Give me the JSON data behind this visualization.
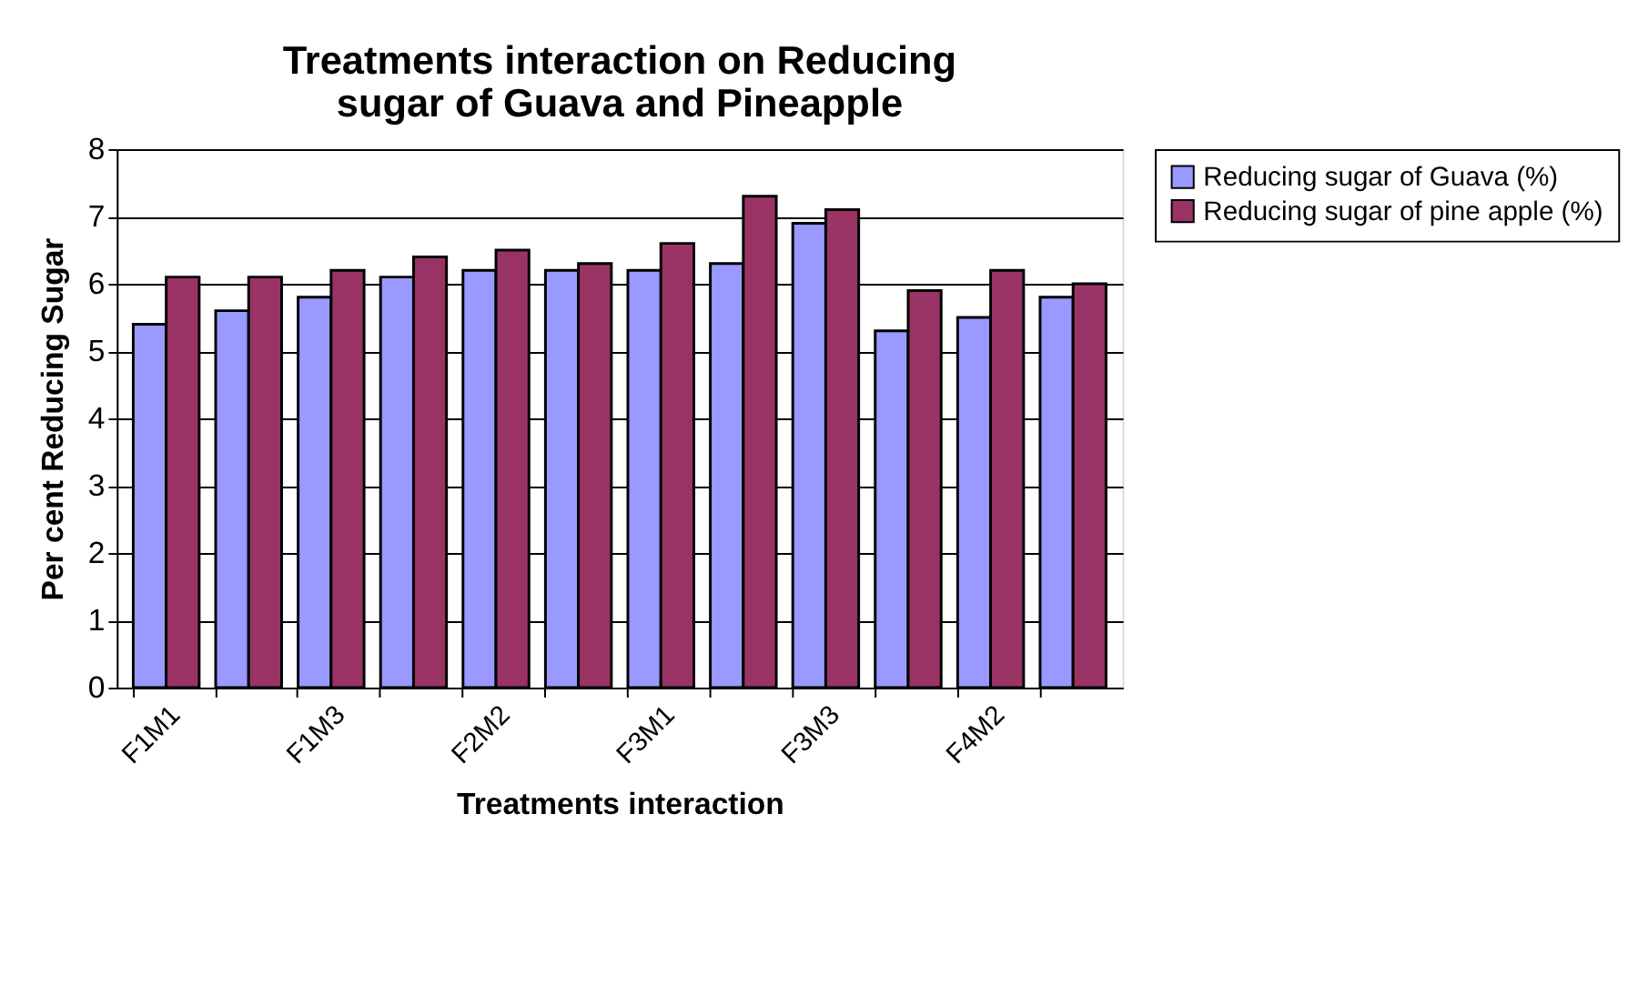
{
  "chart_data": {
    "type": "bar",
    "title": "Treatments interaction on Reducing sugar of Guava and  Pineapple",
    "xlabel": "Treatments interaction",
    "ylabel": "Per cent Reducing Sugar",
    "categories": [
      "F1M1",
      null,
      "F1M3",
      null,
      "F2M2",
      null,
      "F3M1",
      null,
      "F3M3",
      null,
      "F4M2",
      null
    ],
    "series": [
      {
        "name": "Reducing sugar of Guava (%)",
        "color": "#9999ff",
        "values": [
          5.4,
          5.6,
          5.8,
          6.1,
          6.2,
          6.2,
          6.2,
          6.3,
          6.9,
          5.3,
          5.5,
          5.8
        ]
      },
      {
        "name": "Reducing sugar of pine apple (%)",
        "color": "#993366",
        "values": [
          6.1,
          6.1,
          6.2,
          6.4,
          6.5,
          6.3,
          6.6,
          7.3,
          7.1,
          5.9,
          6.2,
          6.0
        ]
      }
    ],
    "ylim": [
      0,
      8
    ],
    "yticks": [
      0,
      1,
      2,
      3,
      4,
      5,
      6,
      7,
      8
    ],
    "grid": "y",
    "legend": "right"
  }
}
